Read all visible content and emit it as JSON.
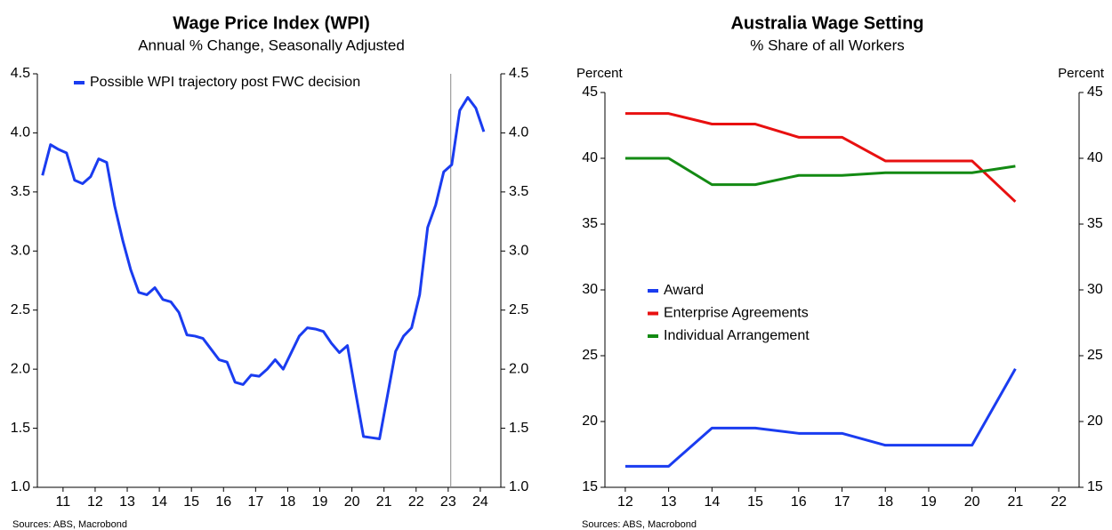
{
  "chart_data": [
    {
      "type": "line",
      "title": "Wage Price Index (WPI)",
      "subtitle": "Annual % Change, Seasonally Adjusted",
      "source": "Sources: ABS, Macrobond",
      "x": [
        10.86,
        11.11,
        11.36,
        11.61,
        11.86,
        12.11,
        12.36,
        12.61,
        12.86,
        13.11,
        13.36,
        13.61,
        13.86,
        14.11,
        14.36,
        14.61,
        14.86,
        15.11,
        15.36,
        15.61,
        15.86,
        16.11,
        16.36,
        16.61,
        16.86,
        17.11,
        17.36,
        17.61,
        17.86,
        18.11,
        18.36,
        18.61,
        18.86,
        19.11,
        19.36,
        19.61,
        19.86,
        20.11,
        20.36,
        20.61,
        20.86,
        21.11,
        21.36,
        21.61,
        21.86,
        22.11,
        22.36,
        22.61,
        22.86,
        23.11,
        23.36,
        23.61,
        23.86,
        24.11,
        24.36,
        24.61
      ],
      "series": [
        {
          "name": "Possible WPI trajectory post FWC decision",
          "color": "#1a3cf0",
          "values": [
            3.64,
            3.9,
            3.86,
            3.83,
            3.6,
            3.57,
            3.63,
            3.78,
            3.75,
            3.38,
            3.09,
            2.84,
            2.65,
            2.63,
            2.69,
            2.59,
            2.57,
            2.48,
            2.29,
            2.28,
            2.26,
            2.17,
            2.08,
            2.06,
            1.89,
            1.87,
            1.95,
            1.94,
            2.0,
            2.08,
            2.0,
            2.14,
            2.28,
            2.35,
            2.34,
            2.32,
            2.22,
            2.14,
            2.2,
            1.81,
            1.43,
            1.42,
            1.41,
            1.78,
            2.15,
            2.28,
            2.35,
            2.63,
            3.2,
            3.39,
            3.67,
            3.73,
            4.19,
            4.3,
            4.21,
            4.01
          ]
        }
      ],
      "vline": 23.58,
      "xlim": [
        10.7,
        25.14
      ],
      "xticks": [
        {
          "value": 11.5,
          "label": "11"
        },
        {
          "value": 12.5,
          "label": "12"
        },
        {
          "value": 13.5,
          "label": "13"
        },
        {
          "value": 14.5,
          "label": "14"
        },
        {
          "value": 15.5,
          "label": "15"
        },
        {
          "value": 16.5,
          "label": "16"
        },
        {
          "value": 17.5,
          "label": "17"
        },
        {
          "value": 18.5,
          "label": "18"
        },
        {
          "value": 19.5,
          "label": "19"
        },
        {
          "value": 20.5,
          "label": "20"
        },
        {
          "value": 21.5,
          "label": "21"
        },
        {
          "value": 22.5,
          "label": "22"
        },
        {
          "value": 23.5,
          "label": "23"
        },
        {
          "value": 24.5,
          "label": "24"
        }
      ],
      "ylim": [
        1.0,
        4.5
      ],
      "yticks": [
        {
          "value": 1.0,
          "label": "1.0"
        },
        1.5,
        {
          "value": 2.0,
          "label": "2.0"
        },
        2.5,
        {
          "value": 3.0,
          "label": "3.0"
        },
        3.5,
        {
          "value": 4.0,
          "label": "4.0"
        },
        4.5
      ],
      "y2lim": [
        1.0,
        4.5
      ],
      "y2ticks": [
        {
          "value": 1.0,
          "label": "1.0"
        },
        1.5,
        {
          "value": 2.0,
          "label": "2.0"
        },
        2.5,
        {
          "value": 3.0,
          "label": "3.0"
        },
        3.5,
        {
          "value": 4.0,
          "label": "4.0"
        },
        4.5
      ]
    },
    {
      "type": "line",
      "title": "Australia Wage Setting",
      "subtitle": "% Share of all Workers",
      "source": "Sources: ABS, Macrobond",
      "ylabel": "Percent",
      "y2label": "Percent",
      "x": [
        12,
        13,
        14,
        15,
        16,
        17,
        18,
        19,
        20,
        21
      ],
      "series": [
        {
          "name": "Award",
          "color": "#1a3cf0",
          "values": [
            16.6,
            16.6,
            19.5,
            19.5,
            19.1,
            19.1,
            18.2,
            18.2,
            18.2,
            24.0
          ]
        },
        {
          "name": "Enterprise Agreements",
          "color": "#e81010",
          "values": [
            43.4,
            43.4,
            42.6,
            42.6,
            41.6,
            41.6,
            39.8,
            39.8,
            39.8,
            36.7
          ]
        },
        {
          "name": "Individual Arrangement",
          "color": "#138a13",
          "values": [
            40.0,
            40.0,
            38.0,
            38.0,
            38.7,
            38.7,
            38.9,
            38.9,
            38.9,
            39.4
          ]
        }
      ],
      "xlim": [
        11.53,
        22.47
      ],
      "xticks": [
        12,
        13,
        14,
        15,
        16,
        17,
        18,
        19,
        20,
        21,
        22
      ],
      "ylim": [
        15,
        45
      ],
      "yticks": [
        15,
        20,
        25,
        30,
        35,
        40,
        45
      ],
      "y2lim": [
        15,
        45
      ],
      "y2ticks": [
        15,
        20,
        25,
        30,
        35,
        40,
        45
      ]
    }
  ]
}
